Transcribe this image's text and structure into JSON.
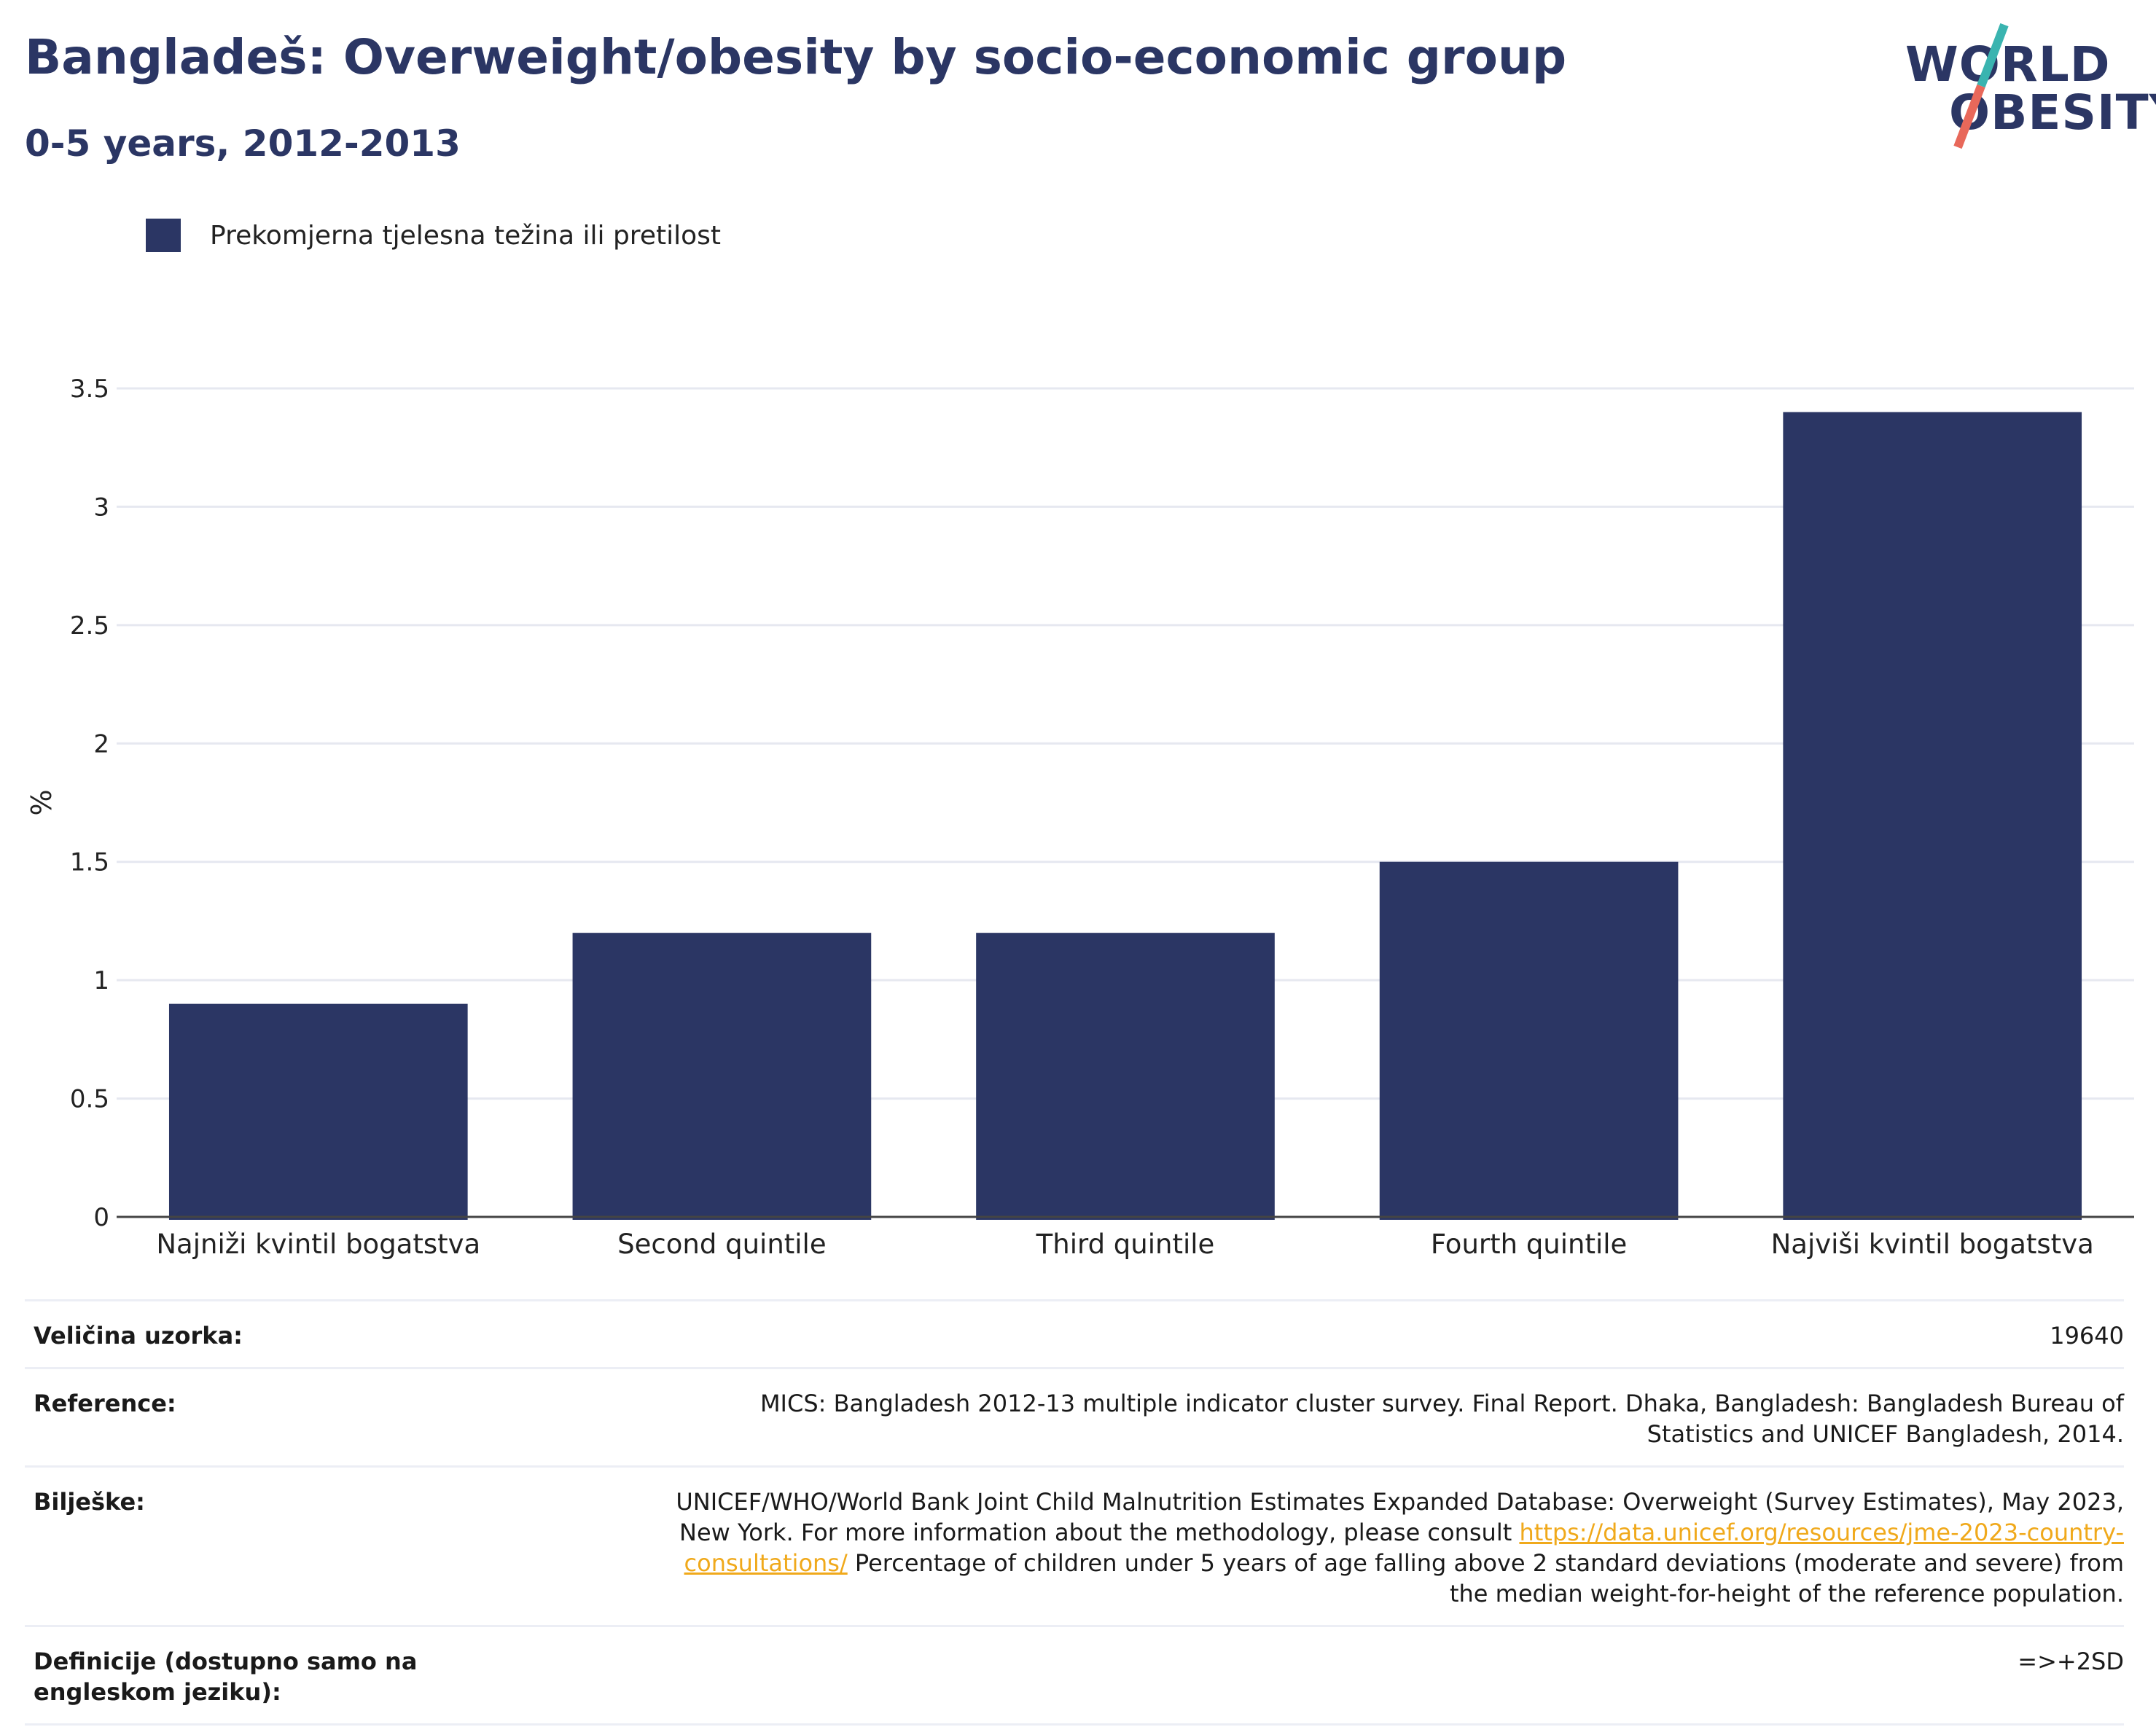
{
  "header": {
    "title": "Bangladeš: Overweight/obesity by socio-economic group",
    "subtitle": "0-5 years, 2012-2013"
  },
  "logo": {
    "line1": "WORLD",
    "line2": "OBESITY",
    "accent_colors": [
      "#3ab4b0",
      "#e8685a"
    ]
  },
  "colors": {
    "bar": "#2b3664",
    "grid": "#e6e8f0",
    "axis": "#444444",
    "link": "#f0a91b"
  },
  "chart_data": {
    "type": "bar",
    "categories": [
      "Najniži kvintil bogatstva",
      "Second quintile",
      "Third quintile",
      "Fourth quintile",
      "Najviši kvintil bogatstva"
    ],
    "series": [
      {
        "name": "Prekomjerna tjelesna težina ili pretilost",
        "values": [
          0.9,
          1.2,
          1.2,
          1.5,
          3.4
        ]
      }
    ],
    "ylabel": "%",
    "ylim": [
      0,
      3.5
    ],
    "yticks": [
      0,
      0.5,
      1,
      1.5,
      2,
      2.5,
      3,
      3.5
    ],
    "ytick_labels": [
      "0",
      "0.5",
      "1",
      "1.5",
      "2",
      "2.5",
      "3",
      "3.5"
    ],
    "grid": true,
    "legend": "top-left"
  },
  "meta": [
    {
      "label": "Veličina uzorka:",
      "value": "19640"
    },
    {
      "label": "Reference:",
      "value": "MICS: Bangladesh 2012-13 multiple indicator cluster survey. Final Report. Dhaka, Bangladesh: Bangladesh Bureau of Statistics and UNICEF Bangladesh, 2014."
    },
    {
      "label": "Bilješke:",
      "value_before": "UNICEF/WHO/World Bank Joint Child Malnutrition Estimates Expanded Database: Overweight (Survey Estimates), May 2023, New York. For more information about the methodology, please consult ",
      "link": "https://data.unicef.org/resources/jme-2023-country-consultations/",
      "value_after": " Percentage of children under 5 years of age falling above 2 standard deviations (moderate and severe) from the median weight-for-height of the reference population."
    },
    {
      "label": "Definicije (dostupno samo na engleskom jeziku):",
      "value": "=>+2SD"
    }
  ]
}
